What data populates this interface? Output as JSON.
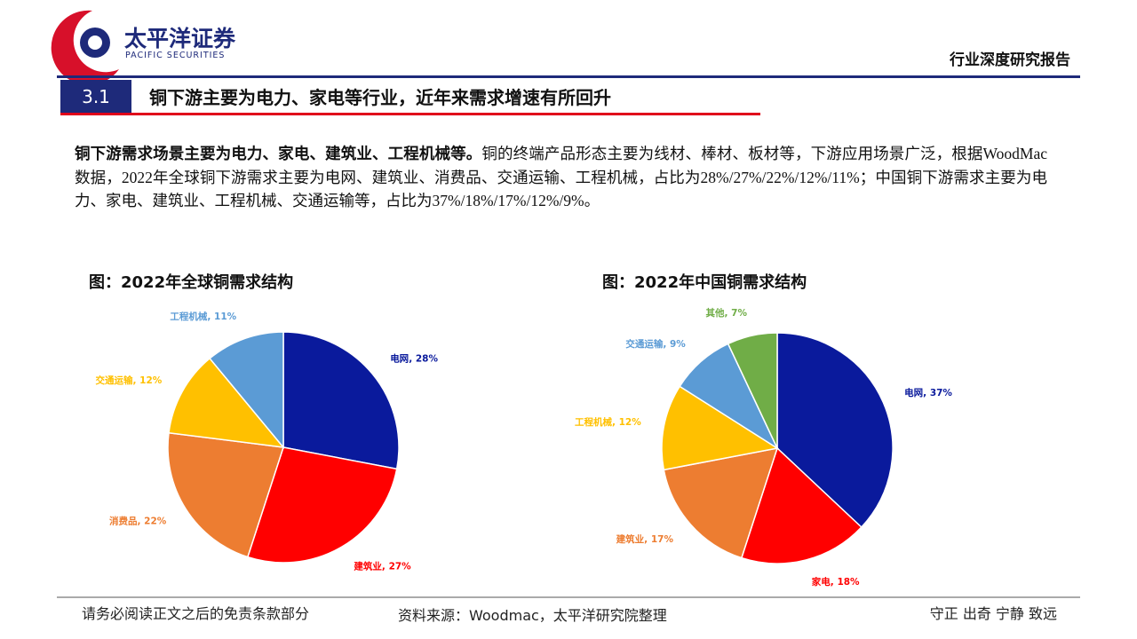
{
  "header": {
    "logo_cn": "太平洋证券",
    "logo_en": "PACIFIC SECURITIES",
    "report_type": "行业深度研究报告"
  },
  "section": {
    "number": "3.1",
    "title": "铜下游主要为电力、家电等行业，近年来需求增速有所回升"
  },
  "body": {
    "lead": "铜下游需求场景主要为电力、家电、建筑业、工程机械等。",
    "text": "铜的终端产品形态主要为线材、棒材、板材等，下游应用场景广泛，根据WoodMac数据，2022年全球铜下游需求主要为电网、建筑业、消费品、交通运输、工程机械，占比为28%/27%/22%/12%/11%；中国铜下游需求主要为电力、家电、建筑业、工程机械、交通运输等，占比为37%/18%/17%/12%/9%。"
  },
  "chart_data": [
    {
      "type": "pie",
      "title": "图：2022年全球铜需求结构",
      "label_separator": ", ",
      "categories": [
        "电网",
        "建筑业",
        "消费品",
        "交通运输",
        "工程机械"
      ],
      "values": [
        28,
        27,
        22,
        12,
        11
      ],
      "value_labels": [
        "28%",
        "27%",
        "22%",
        "12%",
        "11%"
      ],
      "colors": [
        "#0a1a9c",
        "#ff0000",
        "#ed7d31",
        "#ffc000",
        "#5b9bd5"
      ]
    },
    {
      "type": "pie",
      "title": "图：2022年中国铜需求结构",
      "label_separator": ", ",
      "categories": [
        "电网",
        "家电",
        "建筑业",
        "工程机械",
        "交通运输",
        "其他"
      ],
      "values": [
        37,
        18,
        17,
        12,
        9,
        7
      ],
      "value_labels": [
        "37%",
        "18%",
        "17%",
        "12%",
        "9%",
        "7%"
      ],
      "colors": [
        "#0a1a9c",
        "#ff0000",
        "#ed7d31",
        "#ffc000",
        "#5b9bd5",
        "#70ad47"
      ]
    }
  ],
  "footer": {
    "disclaimer": "请务必阅读正文之后的免责条款部分",
    "source": "资料来源：Woodmac，太平洋研究院整理",
    "motto": "守正 出奇 宁静 致远"
  }
}
